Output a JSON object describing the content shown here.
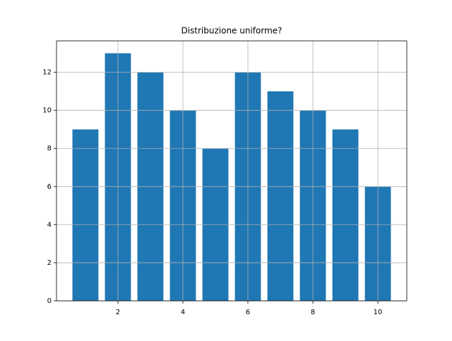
{
  "chart_data": {
    "type": "bar",
    "title": "Distribuzione uniforme?",
    "x": [
      1,
      2,
      3,
      4,
      5,
      6,
      7,
      8,
      9,
      10
    ],
    "values": [
      9,
      13,
      12,
      10,
      8,
      12,
      11,
      10,
      9,
      6
    ],
    "color": "#1f77b4",
    "xlim": [
      0.11,
      10.89
    ],
    "xticks": [
      2,
      4,
      6,
      8,
      10
    ],
    "ylim": [
      0,
      13.65
    ],
    "yticks": [
      0,
      2,
      4,
      6,
      8,
      10,
      12
    ],
    "grid": true
  }
}
